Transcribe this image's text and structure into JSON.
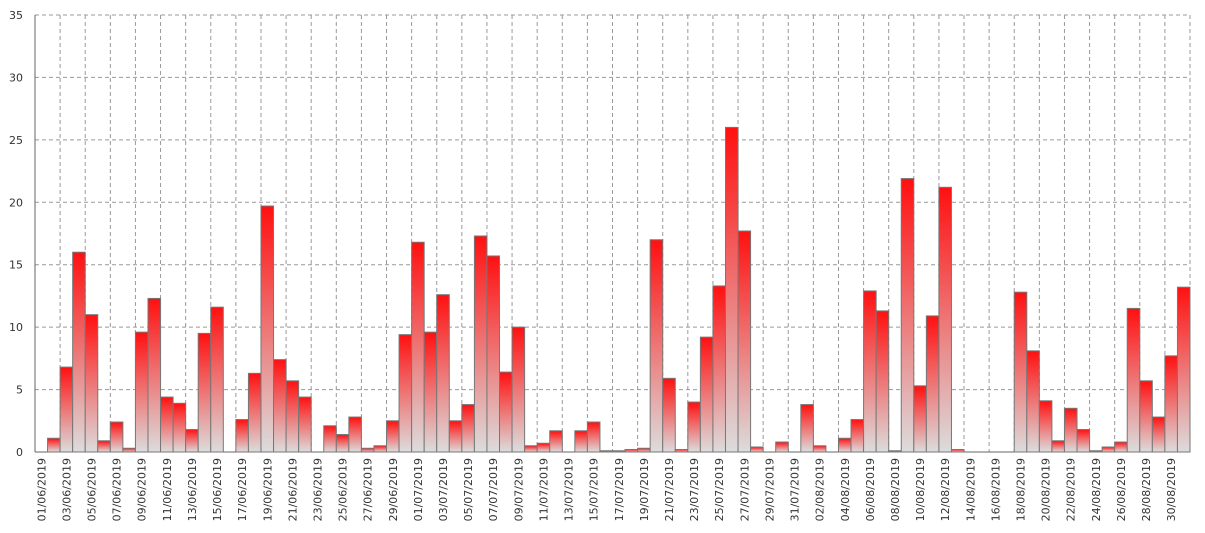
{
  "chart_data": {
    "type": "bar",
    "categories": [
      "01/06/2019",
      null,
      "03/06/2019",
      null,
      "05/06/2019",
      null,
      "07/06/2019",
      null,
      "09/06/2019",
      null,
      "11/06/2019",
      null,
      "13/06/2019",
      null,
      "15/06/2019",
      null,
      "17/06/2019",
      null,
      "19/06/2019",
      null,
      "21/06/2019",
      null,
      "23/06/2019",
      null,
      "25/06/2019",
      null,
      "27/06/2019",
      null,
      "29/06/2019",
      null,
      "01/07/2019",
      null,
      "03/07/2019",
      null,
      "05/07/2019",
      null,
      "07/07/2019",
      null,
      "09/07/2019",
      null,
      "11/07/2019",
      null,
      "13/07/2019",
      null,
      "15/07/2019",
      null,
      "17/07/2019",
      null,
      "19/07/2019",
      null,
      "21/07/2019",
      null,
      "23/07/2019",
      null,
      "25/07/2019",
      null,
      "27/07/2019",
      null,
      "29/07/2019",
      null,
      "31/07/2019",
      null,
      "02/08/2019",
      null,
      "04/08/2019",
      null,
      "06/08/2019",
      null,
      "08/08/2019",
      null,
      "10/08/2019",
      null,
      "12/08/2019",
      null,
      "14/08/2019",
      null,
      "16/08/2019",
      null,
      "18/08/2019",
      null,
      "20/08/2019",
      null,
      "22/08/2019",
      null,
      "24/08/2019",
      null,
      "26/08/2019",
      null,
      "28/08/2019",
      null,
      "30/08/2019",
      null
    ],
    "values": [
      0,
      1.1,
      6.8,
      16.0,
      11.0,
      0.9,
      2.4,
      0.3,
      9.6,
      12.3,
      4.4,
      3.9,
      1.8,
      9.5,
      11.6,
      0,
      2.6,
      6.3,
      19.7,
      7.4,
      5.7,
      4.4,
      0,
      2.1,
      1.4,
      2.8,
      0.3,
      0.5,
      2.5,
      9.4,
      16.8,
      9.6,
      12.6,
      2.5,
      3.8,
      17.3,
      15.7,
      6.4,
      10.0,
      0.5,
      0.7,
      1.7,
      0,
      1.7,
      2.4,
      0.1,
      0.1,
      0.2,
      0.3,
      17.0,
      5.9,
      0.2,
      4.0,
      9.2,
      13.3,
      26.0,
      17.7,
      0.4,
      0,
      0.8,
      0,
      3.8,
      0.5,
      0,
      1.1,
      2.6,
      12.9,
      11.3,
      0.1,
      21.9,
      5.3,
      10.9,
      21.2,
      0.2,
      0,
      0,
      0,
      0,
      12.8,
      8.1,
      4.1,
      0.9,
      3.5,
      1.8,
      0.1,
      0.4,
      0.8,
      11.5,
      5.7,
      2.8,
      7.7,
      13.2
    ],
    "color": "#ff1010",
    "ylim": [
      0,
      35
    ],
    "yticks": [
      0,
      5,
      10,
      15,
      20,
      25,
      30,
      35
    ],
    "grid": true
  }
}
